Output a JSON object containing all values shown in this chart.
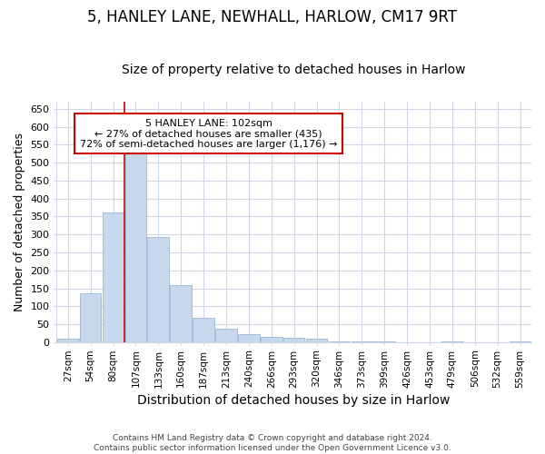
{
  "title1": "5, HANLEY LANE, NEWHALL, HARLOW, CM17 9RT",
  "title2": "Size of property relative to detached houses in Harlow",
  "xlabel": "Distribution of detached houses by size in Harlow",
  "ylabel": "Number of detached properties",
  "categories": [
    "27sqm",
    "54sqm",
    "80sqm",
    "107sqm",
    "133sqm",
    "160sqm",
    "187sqm",
    "213sqm",
    "240sqm",
    "266sqm",
    "293sqm",
    "320sqm",
    "346sqm",
    "373sqm",
    "399sqm",
    "426sqm",
    "453sqm",
    "479sqm",
    "506sqm",
    "532sqm",
    "559sqm"
  ],
  "values": [
    10,
    135,
    362,
    540,
    292,
    159,
    67,
    38,
    22,
    15,
    11,
    9,
    2,
    2,
    2,
    0,
    0,
    3,
    0,
    0,
    3
  ],
  "bar_color": "#c8d8ec",
  "bar_edge_color": "#9ab8d8",
  "vline_x_index": 3,
  "vline_color": "#cc0000",
  "property_label": "5 HANLEY LANE: 102sqm",
  "annotation_line1": "← 27% of detached houses are smaller (435)",
  "annotation_line2": "72% of semi-detached houses are larger (1,176) →",
  "annotation_box_color": "#ffffff",
  "annotation_box_edge": "#cc0000",
  "ylim": [
    0,
    670
  ],
  "yticks": [
    0,
    50,
    100,
    150,
    200,
    250,
    300,
    350,
    400,
    450,
    500,
    550,
    600,
    650
  ],
  "footer1": "Contains HM Land Registry data © Crown copyright and database right 2024.",
  "footer2": "Contains public sector information licensed under the Open Government Licence v3.0.",
  "bg_color": "#ffffff",
  "grid_color": "#d0d8e8",
  "title1_fontsize": 12,
  "title2_fontsize": 10,
  "xlabel_fontsize": 10,
  "ylabel_fontsize": 9
}
